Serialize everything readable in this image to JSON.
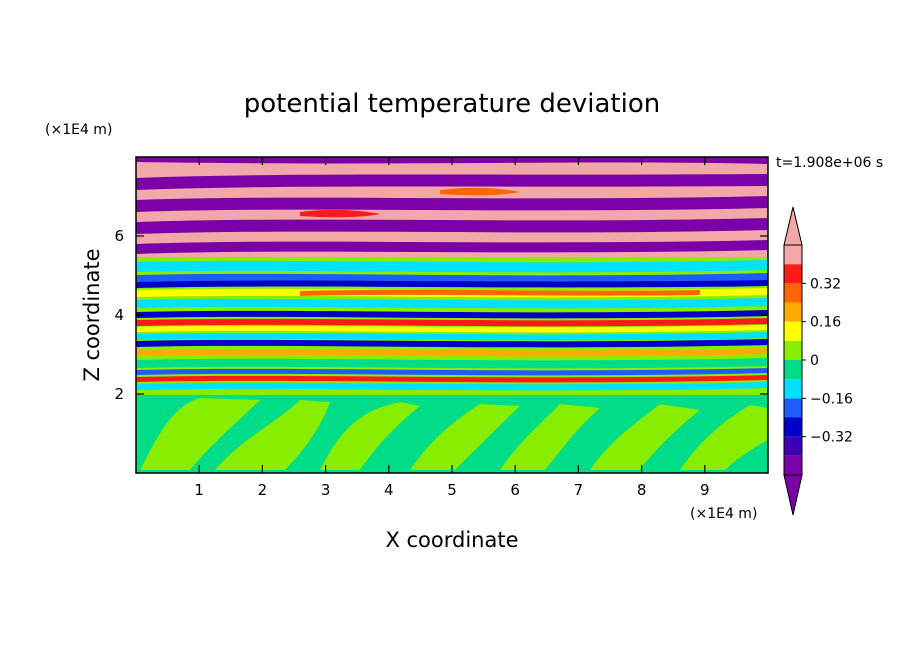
{
  "chart_data": {
    "type": "heatmap",
    "title": "potential temperature deviation",
    "xlabel": "X coordinate",
    "ylabel": "Z coordinate",
    "x_unit": "(×1E4 m)",
    "y_unit": "(×1E4 m)",
    "time_label": "t=1.908e+06 s",
    "xlim": [
      0,
      10
    ],
    "ylim": [
      0,
      8
    ],
    "x_ticks": [
      1,
      2,
      3,
      4,
      5,
      6,
      7,
      8,
      9
    ],
    "y_ticks": [
      2,
      4,
      6
    ],
    "colorbar": {
      "levels": [
        -0.48,
        -0.4,
        -0.32,
        -0.24,
        -0.16,
        -0.08,
        0,
        0.08,
        0.16,
        0.24,
        0.32,
        0.4,
        0.48
      ],
      "labels": [
        "0.32",
        "0.16",
        "0",
        "−0.16",
        "−0.32"
      ],
      "label_values": [
        0.32,
        0.16,
        0,
        -0.16,
        -0.32
      ],
      "colors": [
        "#7b00a8",
        "#3d00b3",
        "#0000c8",
        "#1e5cff",
        "#00e0ff",
        "#00dd88",
        "#88ee00",
        "#ffff00",
        "#ffaa00",
        "#ff6600",
        "#ff1a1a",
        "#f2a8a8"
      ],
      "extend": "both"
    },
    "regions": [
      {
        "z": [
          0,
          2.0
        ],
        "pattern": "mixed near-zero (green / light-green)"
      },
      {
        "z": [
          2.0,
          5.5
        ],
        "pattern": "thin horizontal layers alternating -0.4 to +0.4"
      },
      {
        "z": [
          5.5,
          8.0
        ],
        "pattern": "broad bands alternating purple (< -0.48) and pink (> 0.48)"
      }
    ]
  }
}
